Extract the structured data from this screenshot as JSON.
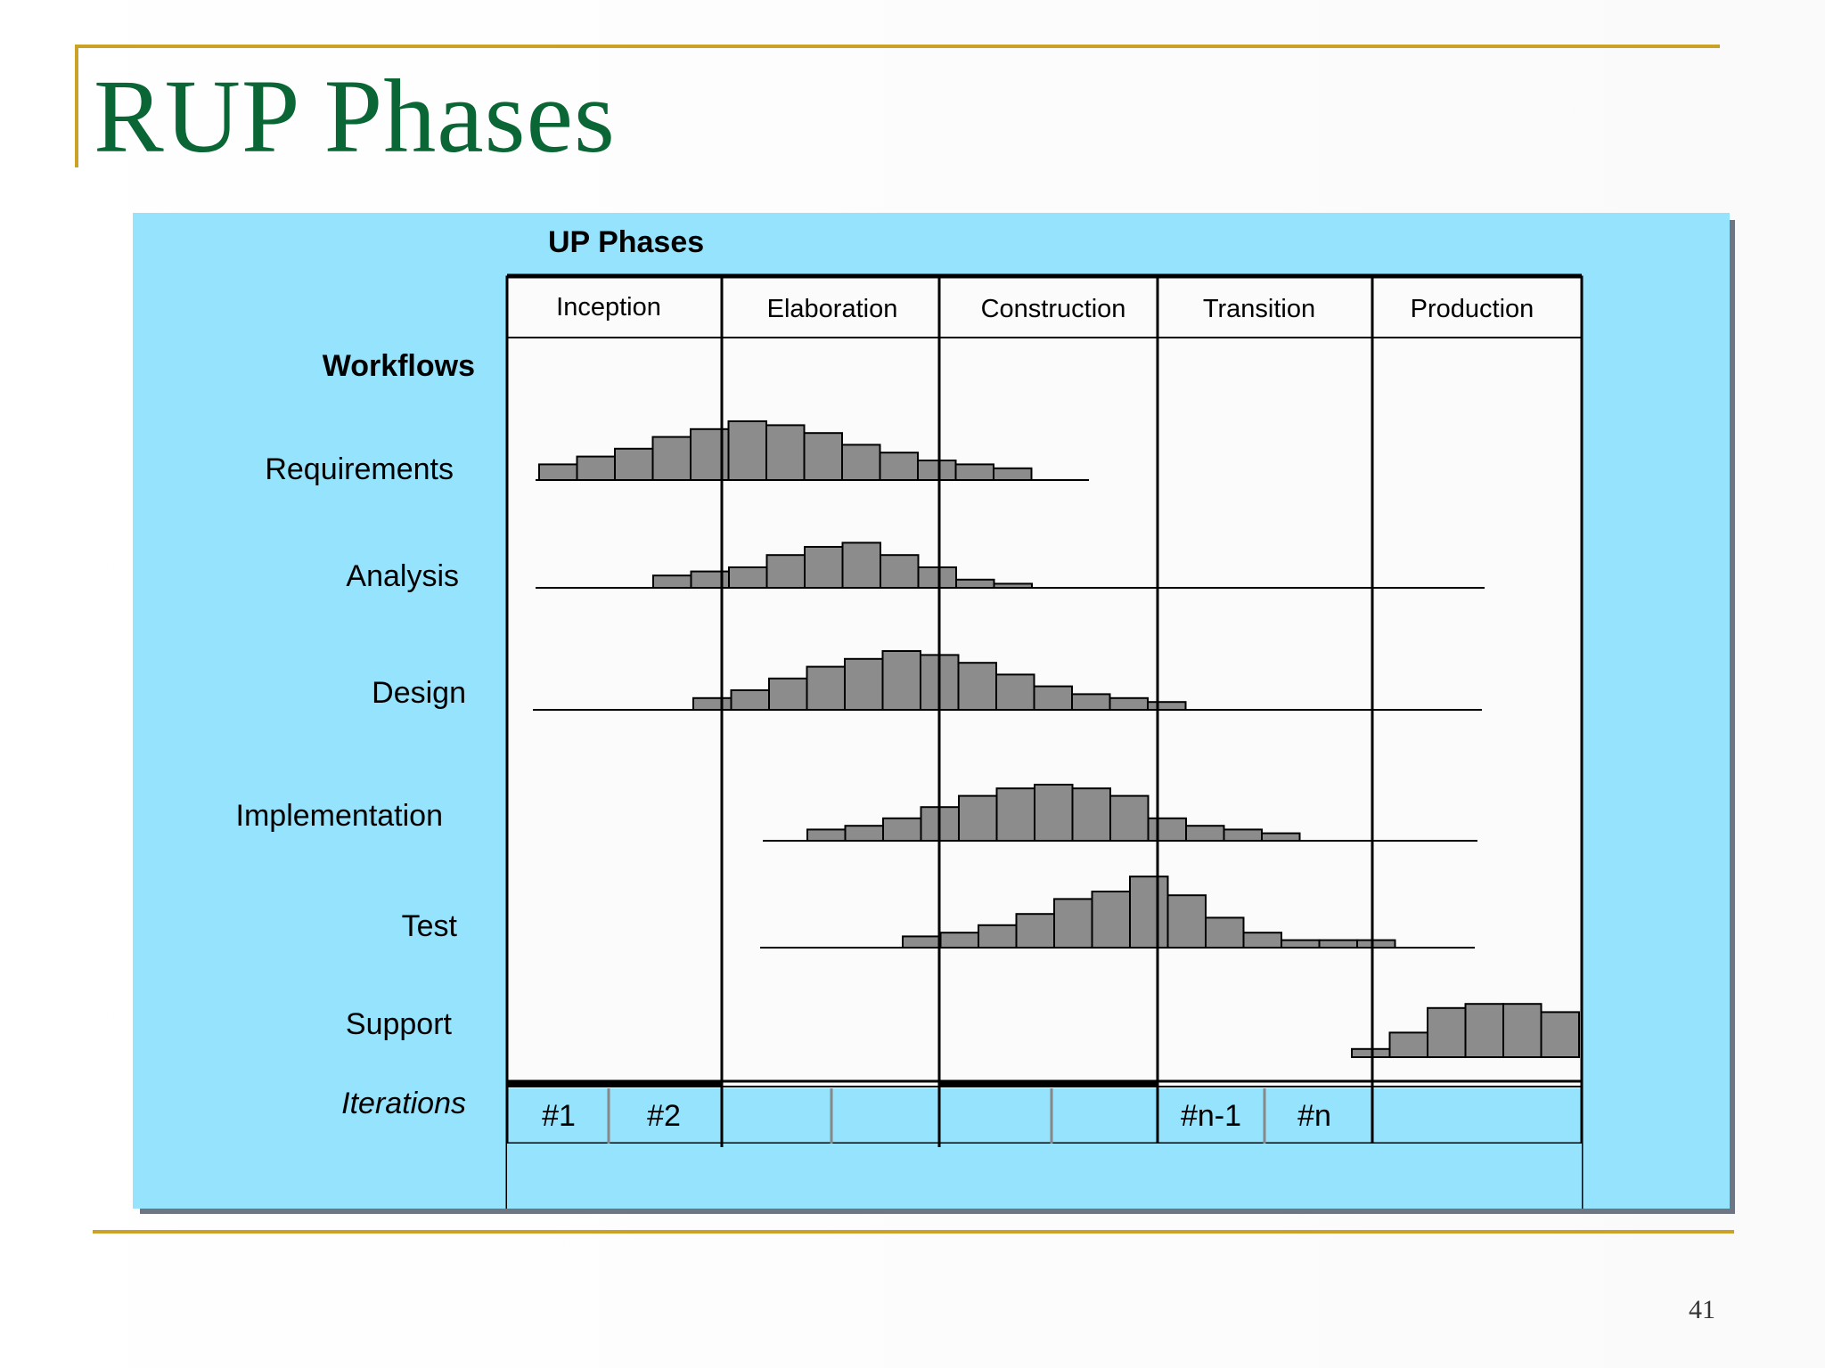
{
  "slide": {
    "title": "RUP Phases",
    "page_number": "41"
  },
  "diagram": {
    "heading": "UP Phases",
    "workflows_label": "Workflows",
    "iterations_label": "Iterations",
    "phases": [
      "Inception",
      "Elaboration",
      "Construction",
      "Transition",
      "Production"
    ],
    "workflows": [
      {
        "name": "Requirements",
        "effort": [
          4,
          6,
          8,
          11,
          13,
          15,
          14,
          12,
          9,
          7,
          5,
          4,
          3
        ]
      },
      {
        "name": "Analysis",
        "effort": [
          3,
          4,
          5,
          8,
          10,
          11,
          8,
          5,
          2,
          1
        ]
      },
      {
        "name": "Design",
        "effort": [
          3,
          5,
          8,
          11,
          13,
          15,
          14,
          12,
          9,
          6,
          4,
          3,
          2
        ]
      },
      {
        "name": "Implementation",
        "effort": [
          3,
          4,
          6,
          9,
          12,
          14,
          15,
          14,
          12,
          6,
          4,
          3,
          2
        ]
      },
      {
        "name": "Test",
        "effort": [
          3,
          4,
          6,
          9,
          13,
          15,
          19,
          14,
          8,
          4,
          2,
          2,
          2
        ]
      },
      {
        "name": "Support",
        "effort": [
          2,
          6,
          12,
          13,
          13,
          11
        ]
      }
    ],
    "iterations": [
      {
        "phase": "Inception",
        "labels": [
          "#1",
          "#2"
        ]
      },
      {
        "phase": "Elaboration",
        "labels": [
          "",
          ""
        ]
      },
      {
        "phase": "Construction",
        "labels": [
          "",
          ""
        ]
      },
      {
        "phase": "Transition",
        "labels": [
          "#n-1",
          "#n"
        ]
      },
      {
        "phase": "Production",
        "labels": []
      }
    ]
  },
  "colors": {
    "title": "#0b6636",
    "rule": "#c9a227",
    "panel": "#95e3fd",
    "bar_fill": "#8c8c8c",
    "grid": "#000000"
  }
}
